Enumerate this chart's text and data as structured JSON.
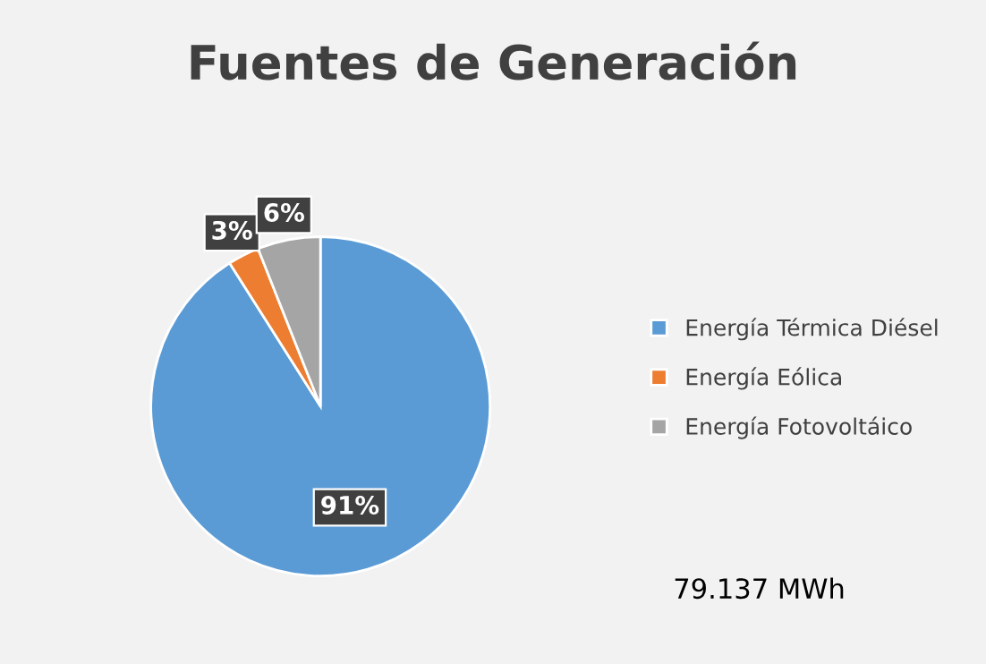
{
  "chart_data": {
    "type": "pie",
    "title": "Fuentes de Generación",
    "categories": [
      "Energía Térmica Diésel",
      "Energía Eólica",
      "Energía Fotovoltáico"
    ],
    "values": [
      91,
      3,
      6
    ],
    "colors": [
      "#5b9bd5",
      "#ed7d31",
      "#a5a5a5"
    ],
    "value_labels": [
      "91%",
      "3%",
      "6%"
    ],
    "legend": "right",
    "annotations": [
      "79.137 MWh"
    ]
  }
}
